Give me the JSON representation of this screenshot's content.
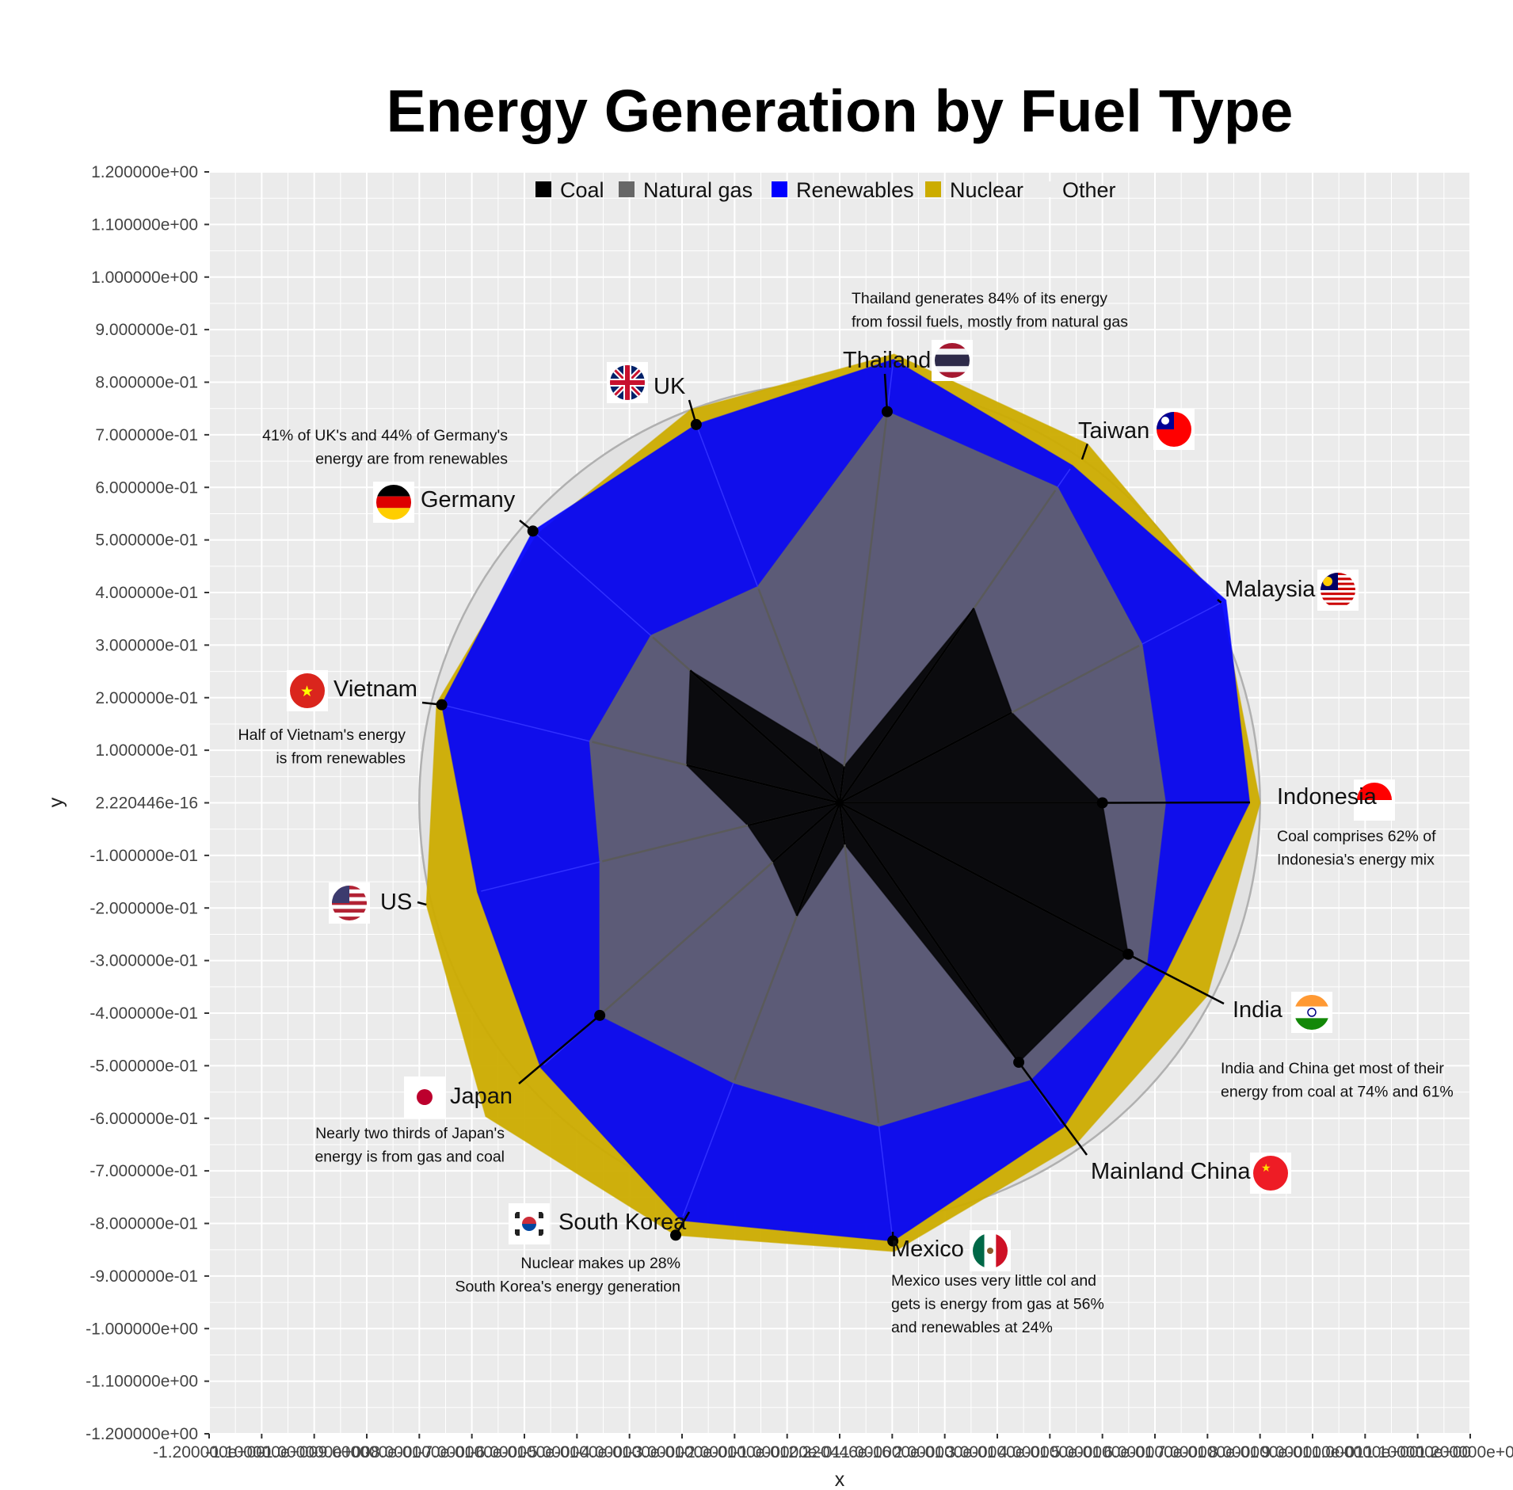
{
  "chart_data": {
    "type": "radar",
    "title": "Energy Generation by Fuel Type",
    "xlabel": "x",
    "ylabel": "y",
    "xlim": [
      -1.2,
      1.2
    ],
    "ylim": [
      -1.2,
      1.2
    ],
    "y_tick_labels": [
      "1.200000e+00",
      "1.100000e+00",
      "1.000000e+00",
      "9.000000e-01",
      "8.000000e-01",
      "7.000000e-01",
      "6.000000e-01",
      "5.000000e-01",
      "4.000000e-01",
      "3.000000e-01",
      "2.000000e-01",
      "1.000000e-01",
      "2.220446e-16",
      "-1.000000e-01",
      "-2.000000e-01",
      "-3.000000e-01",
      "-4.000000e-01",
      "-5.000000e-01",
      "-6.000000e-01",
      "-7.000000e-01",
      "-8.000000e-01",
      "-9.000000e-01",
      "-1.000000e+00",
      "-1.100000e+00",
      "-1.200000e+00"
    ],
    "x_tick_labels": [
      "-1.200000e+00",
      "-1.100000e+00",
      "-1.000000e+00",
      "-9.000000e-01",
      "-8.000000e-01",
      "-7.000000e-01",
      "-6.000000e-01",
      "-5.000000e-01",
      "-4.000000e-01",
      "-3.000000e-01",
      "-2.000000e-01",
      "-1.000000e-01",
      "2.220446e-16",
      "1.000000e-01",
      "2.000000e-01",
      "3.000000e-01",
      "4.000000e-01",
      "5.000000e-01",
      "6.000000e-01",
      "7.000000e-01",
      "8.000000e-01",
      "9.000000e-01",
      "1.000000e+00",
      "1.100000e+00",
      "1.200000e+00"
    ],
    "grid": true,
    "legend_position": "top",
    "categories": [
      "Indonesia",
      "India",
      "Mainland China",
      "Mexico",
      "South Korea",
      "Japan",
      "US",
      "Vietnam",
      "Germany",
      "UK",
      "Thailand",
      "Taiwan",
      "Malaysia"
    ],
    "series": [
      {
        "name": "Coal",
        "color": "#000000",
        "values": [
          0.5,
          0.62,
          0.6,
          0.08,
          0.23,
          0.17,
          0.18,
          0.3,
          0.38,
          0.11,
          0.07,
          0.45,
          0.37
        ]
      },
      {
        "name": "Natural gas",
        "color": "#676767",
        "values": [
          0.62,
          0.66,
          0.64,
          0.62,
          0.57,
          0.61,
          0.47,
          0.49,
          0.48,
          0.44,
          0.75,
          0.73,
          0.65
        ]
      },
      {
        "name": "Renewables",
        "color": "#0000ff",
        "values": [
          0.78,
          0.7,
          0.75,
          0.84,
          0.85,
          0.76,
          0.71,
          0.78,
          0.78,
          0.77,
          0.85,
          0.78,
          0.83
        ]
      },
      {
        "name": "Nuclear",
        "color": "#ccac00",
        "values": [
          0.8,
          0.79,
          0.79,
          0.86,
          0.88,
          0.9,
          0.81,
          0.79,
          0.77,
          0.8,
          0.86,
          0.83,
          0.82
        ]
      },
      {
        "name": "Other",
        "color": "#ebebeb",
        "values": [
          0.8,
          0.8,
          0.8,
          0.8,
          0.8,
          0.8,
          0.8,
          0.8,
          0.8,
          0.8,
          0.8,
          0.8,
          0.8
        ]
      }
    ],
    "highlighted_points": [
      {
        "country": "Indonesia",
        "series": "Coal"
      },
      {
        "country": "India",
        "series": "Coal"
      },
      {
        "country": "Mainland China",
        "series": "Coal"
      },
      {
        "country": "Mexico",
        "series": "Renewables"
      },
      {
        "country": "South Korea",
        "series": "Nuclear"
      },
      {
        "country": "Japan",
        "series": "Natural gas"
      },
      {
        "country": "Vietnam",
        "series": "Renewables"
      },
      {
        "country": "Germany",
        "series": "Renewables"
      },
      {
        "country": "UK",
        "series": "Renewables"
      },
      {
        "country": "Thailand",
        "series": "Natural gas"
      }
    ],
    "annotations": [
      {
        "lines": [
          "Thailand generates 84% of its energy",
          "from fossil fuels, mostly from natural gas"
        ]
      },
      {
        "lines": [
          "41% of UK's and 44% of Germany's",
          "energy are from renewables"
        ]
      },
      {
        "lines": [
          "Half of Vietnam's energy",
          "is from renewables"
        ]
      },
      {
        "lines": [
          "Coal comprises 62% of",
          "Indonesia's energy mix"
        ]
      },
      {
        "lines": [
          "India and China get most of their",
          "energy from coal at 74% and 61%"
        ]
      },
      {
        "lines": [
          "Nearly two thirds of Japan's",
          "energy is from gas and coal"
        ]
      },
      {
        "lines": [
          "Nuclear makes up 28%",
          "South Korea's energy generation"
        ]
      },
      {
        "lines": [
          "Mexico uses very little col and",
          "gets is energy from gas at 56%",
          "and renewables at 24%"
        ]
      }
    ]
  },
  "flags": [
    {
      "country": "Indonesia",
      "icon": "indonesia-flag",
      "colors": [
        "#ff0000",
        "#ffffff"
      ]
    },
    {
      "country": "India",
      "icon": "india-flag",
      "colors": [
        "#ff9933",
        "#ffffff",
        "#138808"
      ]
    },
    {
      "country": "Mainland China",
      "icon": "china-flag",
      "colors": [
        "#ee1c25",
        "#ffde00"
      ]
    },
    {
      "country": "Mexico",
      "icon": "mexico-flag",
      "colors": [
        "#006847",
        "#ffffff",
        "#ce1126"
      ]
    },
    {
      "country": "South Korea",
      "icon": "south-korea-flag",
      "colors": [
        "#ffffff",
        "#cd2e3a",
        "#0047a0"
      ]
    },
    {
      "country": "Japan",
      "icon": "japan-flag",
      "colors": [
        "#ffffff",
        "#bc002d"
      ]
    },
    {
      "country": "US",
      "icon": "us-flag",
      "colors": [
        "#b22234",
        "#ffffff",
        "#3c3b6e"
      ]
    },
    {
      "country": "Vietnam",
      "icon": "vietnam-flag",
      "colors": [
        "#da251d",
        "#ffff00"
      ]
    },
    {
      "country": "Germany",
      "icon": "germany-flag",
      "colors": [
        "#000000",
        "#dd0000",
        "#ffce00"
      ]
    },
    {
      "country": "UK",
      "icon": "uk-flag",
      "colors": [
        "#012169",
        "#ffffff",
        "#c8102e"
      ]
    },
    {
      "country": "Thailand",
      "icon": "thailand-flag",
      "colors": [
        "#a51931",
        "#f4f5f8",
        "#2d2a4a"
      ]
    },
    {
      "country": "Taiwan",
      "icon": "taiwan-flag",
      "colors": [
        "#fe0000",
        "#000095",
        "#ffffff"
      ]
    },
    {
      "country": "Malaysia",
      "icon": "malaysia-flag",
      "colors": [
        "#cc0001",
        "#ffffff",
        "#010066",
        "#ffcc00"
      ]
    }
  ]
}
